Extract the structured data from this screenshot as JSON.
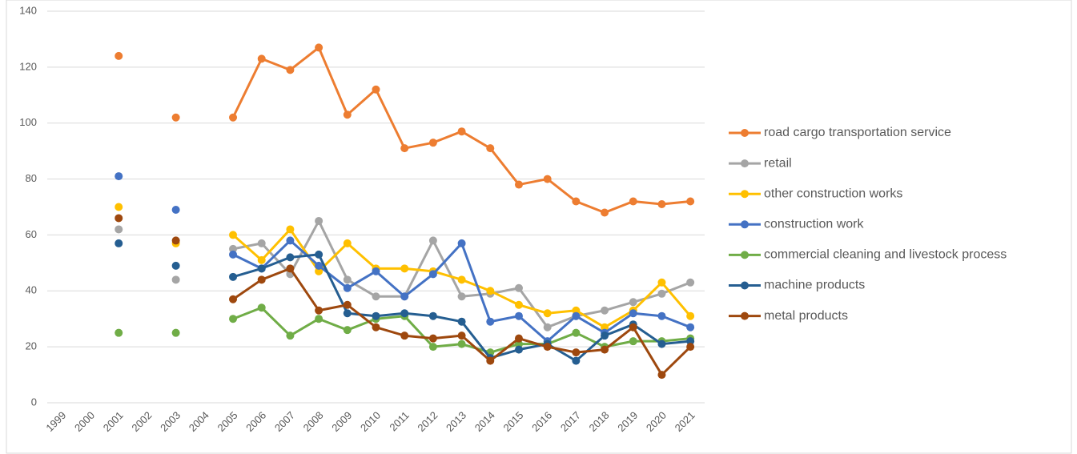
{
  "chart_data": {
    "type": "line",
    "categories": [
      "1999",
      "2000",
      "2001",
      "2002",
      "2003",
      "2004",
      "2005",
      "2006",
      "2007",
      "2008",
      "2009",
      "2010",
      "2011",
      "2012",
      "2013",
      "2014",
      "2015",
      "2016",
      "2017",
      "2018",
      "2019",
      "2020",
      "2021"
    ],
    "series": [
      {
        "name": "road cargo transportation service",
        "color": "#ed7d31",
        "values": [
          null,
          null,
          124,
          null,
          102,
          null,
          102,
          123,
          119,
          127,
          103,
          112,
          91,
          93,
          97,
          91,
          78,
          80,
          72,
          68,
          72,
          71,
          72
        ]
      },
      {
        "name": "retail",
        "color": "#a5a5a5",
        "values": [
          null,
          null,
          62,
          null,
          44,
          null,
          55,
          57,
          46,
          65,
          44,
          38,
          38,
          58,
          38,
          39,
          41,
          27,
          31,
          33,
          36,
          39,
          43
        ]
      },
      {
        "name": "other construction works",
        "color": "#ffc000",
        "values": [
          null,
          null,
          70,
          null,
          57,
          null,
          60,
          51,
          62,
          47,
          57,
          48,
          48,
          47,
          44,
          40,
          35,
          32,
          33,
          27,
          33,
          43,
          31
        ]
      },
      {
        "name": "construction work",
        "color": "#4472c4",
        "values": [
          null,
          null,
          81,
          null,
          69,
          null,
          53,
          48,
          58,
          49,
          41,
          47,
          38,
          46,
          57,
          29,
          31,
          22,
          31,
          25,
          32,
          31,
          27
        ]
      },
      {
        "name": "commercial cleaning and livestock process",
        "color": "#70ad47",
        "values": [
          null,
          null,
          25,
          null,
          25,
          null,
          30,
          34,
          24,
          30,
          26,
          30,
          31,
          20,
          21,
          18,
          21,
          21,
          25,
          20,
          22,
          22,
          23
        ]
      },
      {
        "name": "machine products",
        "color": "#255e91",
        "values": [
          null,
          null,
          57,
          null,
          49,
          null,
          45,
          48,
          52,
          53,
          32,
          31,
          32,
          31,
          29,
          16,
          19,
          21,
          15,
          24,
          28,
          21,
          22
        ]
      },
      {
        "name": "metal products",
        "color": "#9e480e",
        "values": [
          null,
          null,
          66,
          null,
          58,
          null,
          37,
          44,
          48,
          33,
          35,
          27,
          24,
          23,
          24,
          15,
          23,
          20,
          18,
          19,
          27,
          10,
          20
        ]
      }
    ],
    "ylim": [
      0,
      140
    ],
    "yticks": [
      0,
      20,
      40,
      60,
      80,
      100,
      120,
      140
    ],
    "grid": true,
    "legend": "right"
  }
}
